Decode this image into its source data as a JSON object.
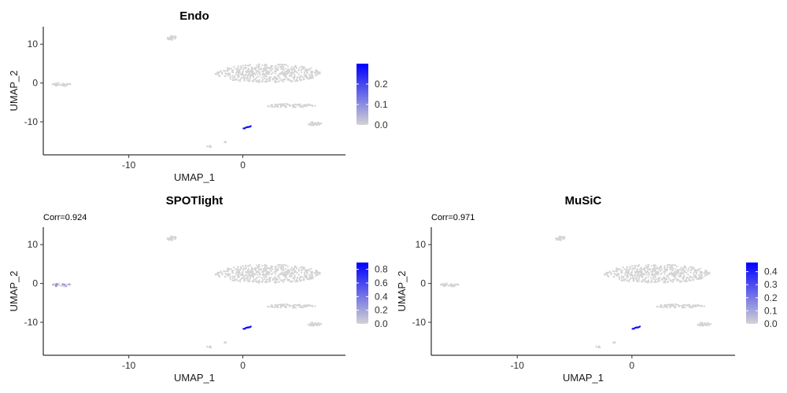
{
  "chart_data": [
    {
      "type": "scatter",
      "title": "Endo",
      "subtitle": "",
      "xlabel": "UMAP_1",
      "ylabel": "UMAP_2",
      "xlim": [
        -17.5,
        9
      ],
      "ylim": [
        -18.5,
        14.5
      ],
      "xticks": [
        -10,
        0
      ],
      "yticks": [
        10,
        0,
        -10
      ],
      "color_scale": {
        "low": "#d3d3d3",
        "high": "#0000ff",
        "min": 0.0,
        "max": 0.3
      },
      "legend_ticks": [
        "0.0",
        "0.1",
        "0.2"
      ],
      "legend_values": [
        0.0,
        0.1,
        0.2
      ],
      "legend_position": "right",
      "highlight": {
        "cluster": "small-center-blue",
        "value": 0.27
      }
    },
    {
      "type": "scatter",
      "title": "SPOTlight",
      "subtitle": "Corr=0.924",
      "xlabel": "UMAP_1",
      "ylabel": "UMAP_2",
      "xlim": [
        -17.5,
        9
      ],
      "ylim": [
        -18.5,
        14.5
      ],
      "xticks": [
        -10,
        0
      ],
      "yticks": [
        10,
        0,
        -10
      ],
      "color_scale": {
        "low": "#d3d3d3",
        "high": "#0000ff",
        "min": 0.0,
        "max": 0.9
      },
      "legend_ticks": [
        "0.0",
        "0.2",
        "0.4",
        "0.6",
        "0.8"
      ],
      "legend_values": [
        0.0,
        0.2,
        0.4,
        0.6,
        0.8
      ],
      "legend_position": "right",
      "highlight": {
        "cluster": "small-center-blue",
        "value": 0.85,
        "secondary": "far-left",
        "secondary_value": 0.35
      }
    },
    {
      "type": "scatter",
      "title": "MuSiC",
      "subtitle": "Corr=0.971",
      "xlabel": "UMAP_1",
      "ylabel": "UMAP_2",
      "xlim": [
        -17.5,
        9
      ],
      "ylim": [
        -18.5,
        14.5
      ],
      "xticks": [
        -10,
        0
      ],
      "yticks": [
        10,
        0,
        -10
      ],
      "color_scale": {
        "low": "#d3d3d3",
        "high": "#0000ff",
        "min": 0.0,
        "max": 0.47
      },
      "legend_ticks": [
        "0.0",
        "0.1",
        "0.2",
        "0.3",
        "0.4"
      ],
      "legend_values": [
        0.0,
        0.1,
        0.2,
        0.3,
        0.4
      ],
      "legend_position": "right",
      "highlight": {
        "cluster": "small-center-blue",
        "value": 0.42
      }
    }
  ],
  "clusters": [
    {
      "name": "top-small",
      "cx": -6.2,
      "cy": 11.6,
      "rx": 0.45,
      "ry": 0.6,
      "n": 30
    },
    {
      "name": "far-left",
      "cx": -15.9,
      "cy": -0.4,
      "rx": 0.8,
      "ry": 0.45,
      "n": 40
    },
    {
      "name": "big-central",
      "cx": 2.2,
      "cy": 2.5,
      "rx": 4.6,
      "ry": 2.4,
      "n": 520
    },
    {
      "name": "mid-right-strip",
      "cx": 4.2,
      "cy": -5.8,
      "rx": 2.2,
      "ry": 0.5,
      "n": 90
    },
    {
      "name": "right-small",
      "cx": 6.3,
      "cy": -10.5,
      "rx": 0.7,
      "ry": 0.45,
      "n": 35
    },
    {
      "name": "small-center-blue",
      "cx": 0.4,
      "cy": -11.4,
      "rx": 0.35,
      "ry": 0.2,
      "n": 14
    },
    {
      "name": "bottom-left-a",
      "cx": -2.9,
      "cy": -16.3,
      "rx": 0.25,
      "ry": 0.2,
      "n": 8
    },
    {
      "name": "bottom-left-b",
      "cx": -1.6,
      "cy": -15.2,
      "rx": 0.2,
      "ry": 0.18,
      "n": 5
    }
  ]
}
